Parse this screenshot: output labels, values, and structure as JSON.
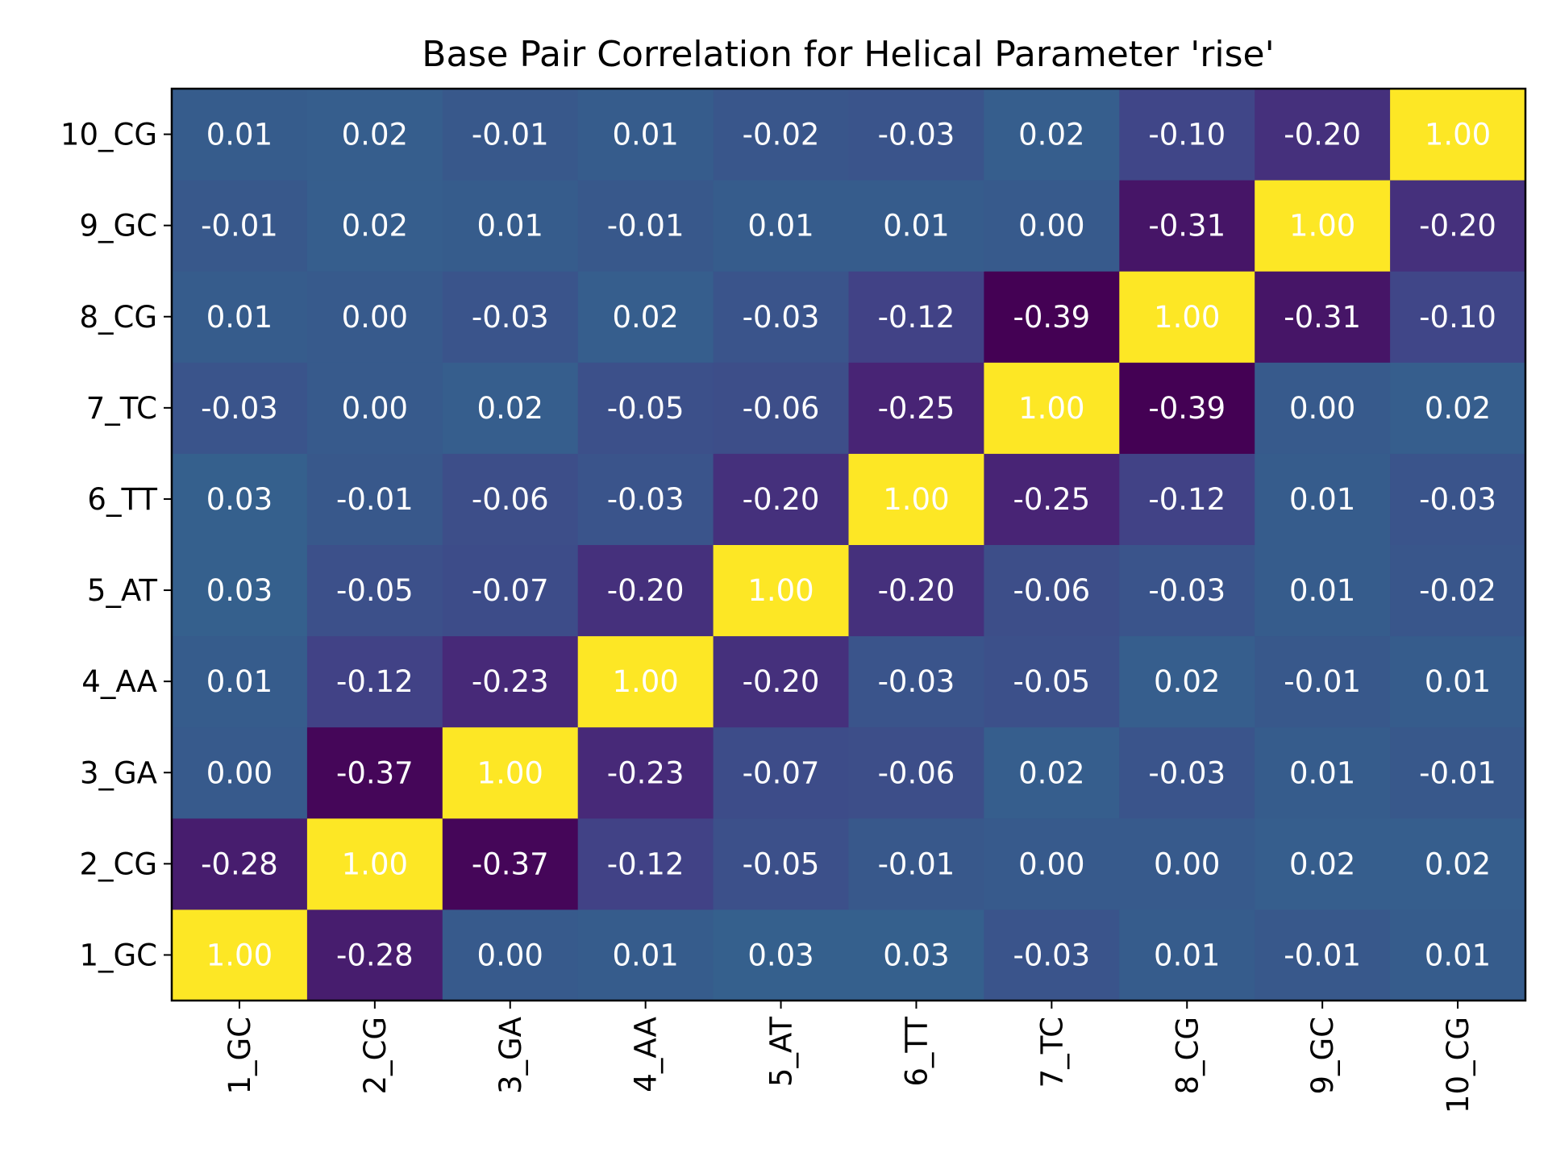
{
  "chart_data": {
    "type": "heatmap",
    "title": "Base Pair Correlation for Helical Parameter 'rise'",
    "xlabel": "",
    "ylabel": "",
    "colormap": "viridis",
    "color_range": [
      -0.39,
      1.0
    ],
    "x_categories": [
      "1_GC",
      "2_CG",
      "3_GA",
      "4_AA",
      "5_AT",
      "6_TT",
      "7_TC",
      "8_CG",
      "9_GC",
      "10_CG"
    ],
    "y_categories": [
      "1_GC",
      "2_CG",
      "3_GA",
      "4_AA",
      "5_AT",
      "6_TT",
      "7_TC",
      "8_CG",
      "9_GC",
      "10_CG"
    ],
    "values": [
      [
        1.0,
        -0.28,
        -0.0,
        0.01,
        0.03,
        0.03,
        -0.03,
        0.01,
        -0.01,
        0.01
      ],
      [
        -0.28,
        1.0,
        -0.37,
        -0.12,
        -0.05,
        -0.01,
        -0.0,
        -0.0,
        0.02,
        0.02
      ],
      [
        -0.0,
        -0.37,
        1.0,
        -0.23,
        -0.07,
        -0.06,
        0.02,
        -0.03,
        0.01,
        -0.01
      ],
      [
        0.01,
        -0.12,
        -0.23,
        1.0,
        -0.2,
        -0.03,
        -0.05,
        0.02,
        -0.01,
        0.01
      ],
      [
        0.03,
        -0.05,
        -0.07,
        -0.2,
        1.0,
        -0.2,
        -0.06,
        -0.03,
        0.01,
        -0.02
      ],
      [
        0.03,
        -0.01,
        -0.06,
        -0.03,
        -0.2,
        1.0,
        -0.25,
        -0.12,
        0.01,
        -0.03
      ],
      [
        -0.03,
        -0.0,
        0.02,
        -0.05,
        -0.06,
        -0.25,
        1.0,
        -0.39,
        -0.0,
        0.02
      ],
      [
        0.01,
        -0.0,
        -0.03,
        0.02,
        -0.03,
        -0.12,
        -0.39,
        1.0,
        -0.31,
        -0.1
      ],
      [
        -0.01,
        0.02,
        0.01,
        -0.01,
        0.01,
        0.01,
        -0.0,
        -0.31,
        1.0,
        -0.2
      ],
      [
        0.01,
        0.02,
        -0.01,
        0.01,
        -0.02,
        -0.03,
        0.02,
        -0.1,
        -0.2,
        1.0
      ]
    ],
    "annotation_format": "0.00",
    "annotation_color": "#ffffff",
    "grid": false
  }
}
